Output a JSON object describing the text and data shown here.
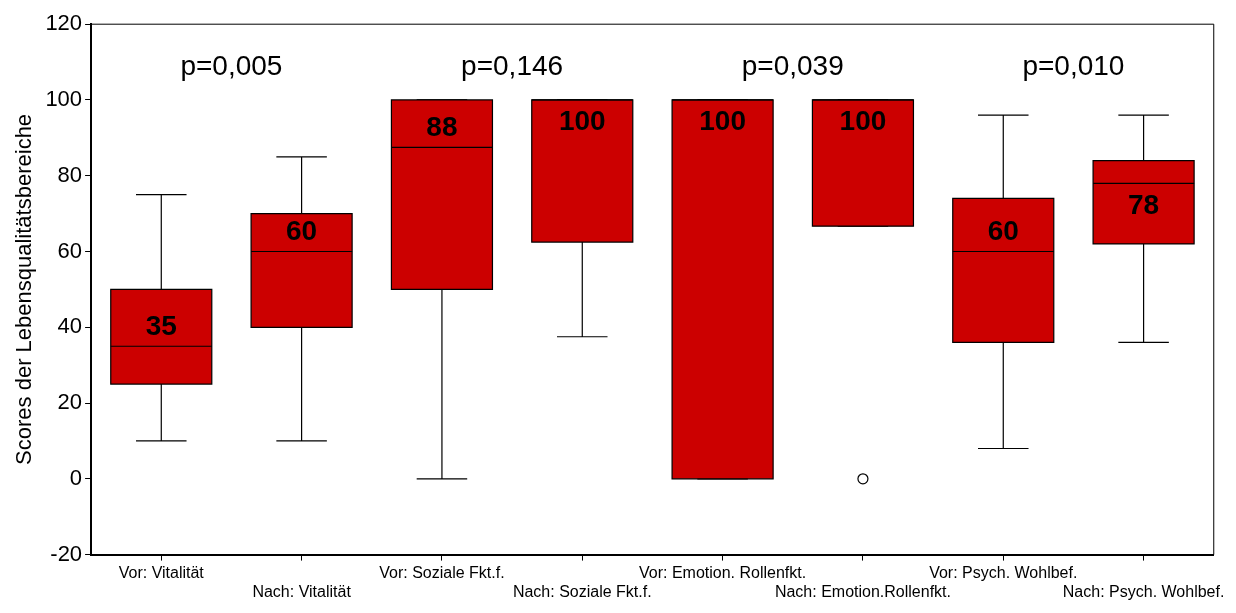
{
  "chart_data": {
    "type": "box",
    "ylabel": "Scores der Lebensqualitätsbereiche",
    "categories": [
      "Vor: Vitalität",
      "Nach: Vitalität",
      "Vor: Soziale Fkt.f.",
      "Nach: Soziale Fkt.f.",
      "Vor: Emotion. Rollenfkt.",
      "Nach: Emotion.Rollenfkt.",
      "Vor: Psych. Wohlbef.",
      "Nach: Psych. Wohlbef."
    ],
    "color": "#cc0000",
    "boxes": [
      {
        "low": 10,
        "q1": 25,
        "median": 35,
        "q3": 50,
        "high": 75
      },
      {
        "low": 10,
        "q1": 40,
        "median": 60,
        "q3": 70,
        "high": 85
      },
      {
        "low": 0,
        "q1": 50,
        "median": 87.5,
        "q3": 100,
        "high": 100
      },
      {
        "low": 37.5,
        "q1": 62.5,
        "median": 100,
        "q3": 100,
        "high": 100
      },
      {
        "low": 0,
        "q1": 0,
        "median": 100,
        "q3": 100,
        "high": 100
      },
      {
        "low": 66.7,
        "q1": 66.7,
        "median": 100,
        "q3": 100,
        "high": 100,
        "outliers": [
          0
        ]
      },
      {
        "low": 8,
        "q1": 36,
        "median": 60,
        "q3": 74,
        "high": 96
      },
      {
        "low": 36,
        "q1": 62,
        "median": 78,
        "q3": 84,
        "high": 96
      }
    ],
    "value_labels": [
      "35",
      "60",
      "88",
      "100",
      "100",
      "100",
      "60",
      "78"
    ],
    "annotations": [
      "p=0,005",
      "p=0,146",
      "p=0,039",
      "p=0,010"
    ],
    "ylim": [
      -20,
      120
    ],
    "yticks": [
      -20,
      0,
      20,
      40,
      60,
      80,
      100,
      120
    ]
  }
}
